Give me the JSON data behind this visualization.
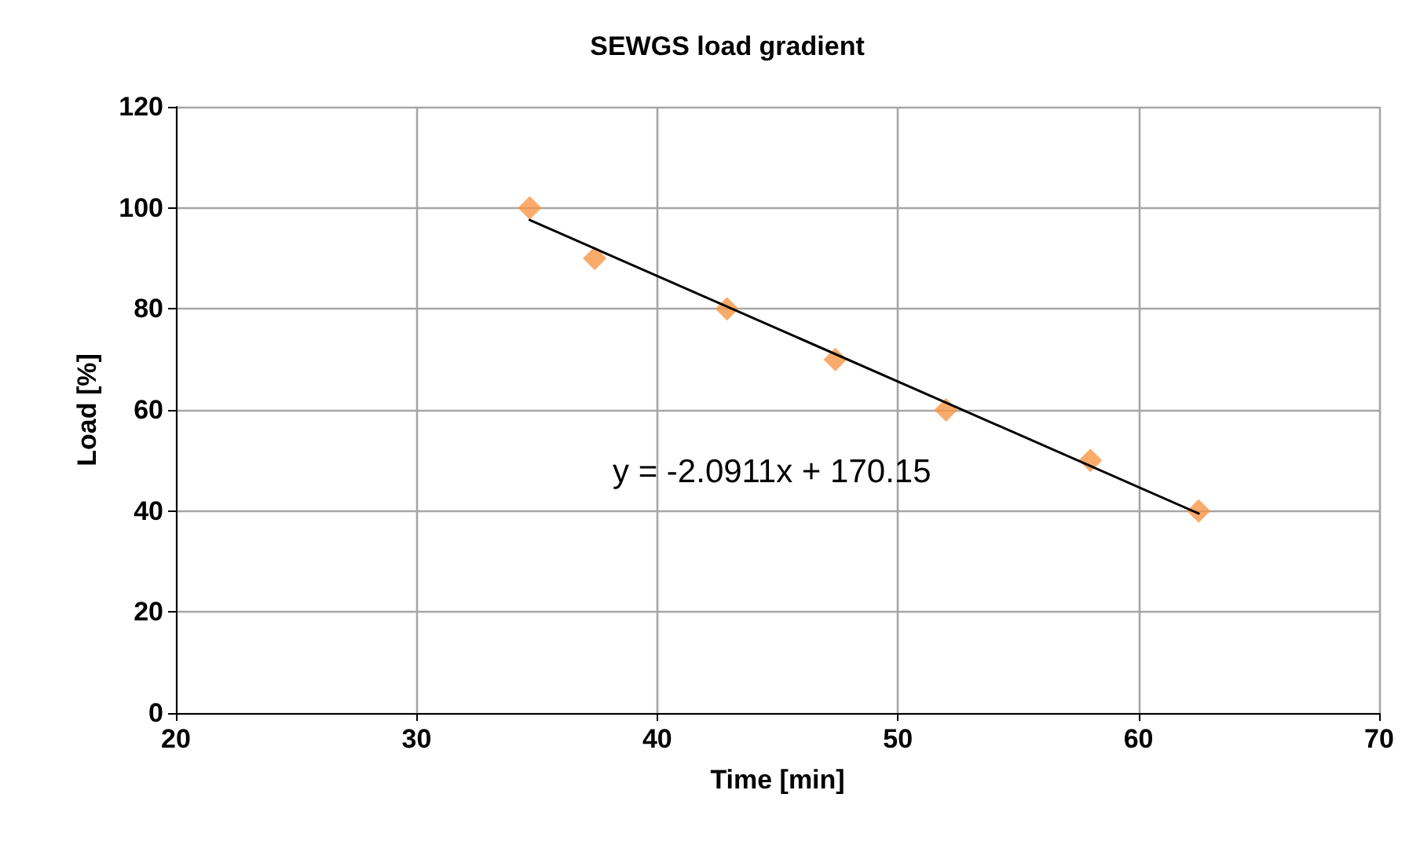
{
  "chart_data": {
    "type": "scatter",
    "title": "SEWGS load gradient",
    "xlabel": "Time [min]",
    "ylabel": "Load [%]",
    "xlim": [
      20,
      70
    ],
    "xticks": [
      20,
      30,
      40,
      50,
      60,
      70
    ],
    "ylim": [
      0,
      120
    ],
    "yticks": [
      0,
      20,
      40,
      60,
      80,
      100,
      120
    ],
    "grid": true,
    "marker": "diamond",
    "series": [
      {
        "color": "#f79646",
        "x": [
          34.7,
          37.4,
          42.9,
          47.4,
          52.0,
          58.0,
          62.5
        ],
        "values": [
          100,
          90,
          80,
          70,
          60,
          50,
          40
        ]
      },
      {
        "type": "line",
        "color": "#000000",
        "marker": "none",
        "line_style": "solid",
        "x": [
          34.7,
          62.5
        ],
        "values": [
          97.6,
          39.5
        ]
      }
    ],
    "annotations": [
      "y = -2.0911x + 170.15"
    ]
  }
}
